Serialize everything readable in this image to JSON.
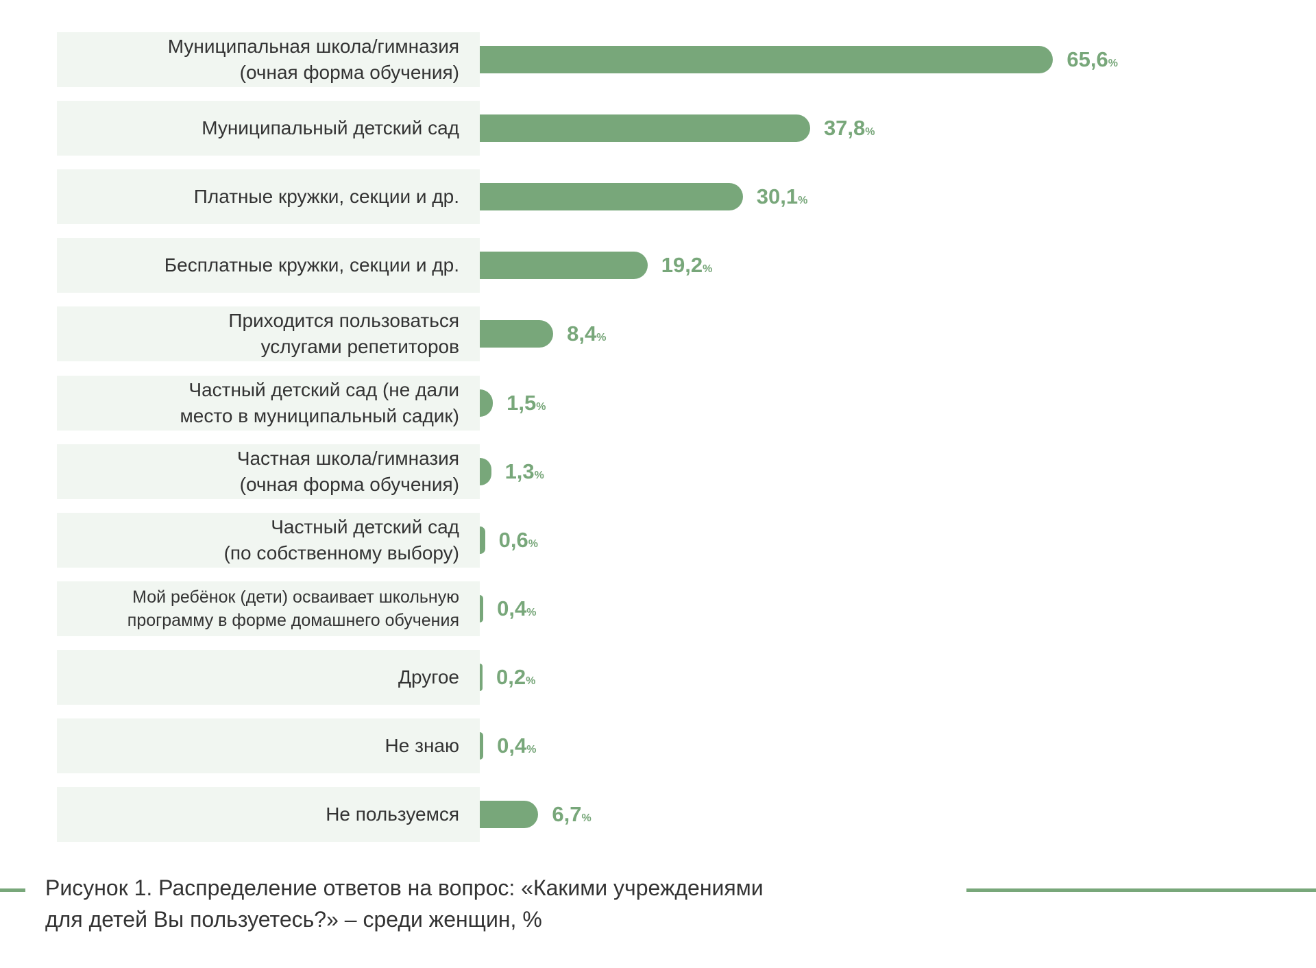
{
  "chart_data": {
    "type": "bar",
    "orientation": "horizontal",
    "categories": [
      "Муниципальная школа/гимназия\n(очная форма обучения)",
      "Муниципальный детский сад",
      "Платные кружки, секции и др.",
      "Бесплатные кружки, секции и др.",
      "Приходится пользоваться\nуслугами репетиторов",
      "Частный детский сад (не дали\nместо в муниципальный  садик)",
      "Частная школа/гимназия\n(очная форма обучения)",
      "Частный детский сад\n(по собственному выбору)",
      "Мой ребёнок (дети) осваивает школьную\nпрограмму в форме домашнего обучения",
      "Другое",
      "Не знаю",
      "Не пользуемся"
    ],
    "values": [
      65.6,
      37.8,
      30.1,
      19.2,
      8.4,
      1.5,
      1.3,
      0.6,
      0.4,
      0.2,
      0.4,
      6.7
    ],
    "value_labels": [
      "65,6",
      "37,8",
      "30,1",
      "19,2",
      "8,4",
      "1,5",
      "1,3",
      "0,6",
      "0,4",
      "0,2",
      "0,4",
      "6,7"
    ],
    "unit": "%",
    "title": "Рисунок 1. Распределение ответов на вопрос: «Какими учреждениями\nдля детей Вы пользуетесь?» – среди женщин, %",
    "xlabel": "",
    "ylabel": "",
    "xlim": [
      0,
      70
    ],
    "grid": false,
    "bar_color": "#78a77a",
    "label_bg_color": "#f1f6f1"
  }
}
